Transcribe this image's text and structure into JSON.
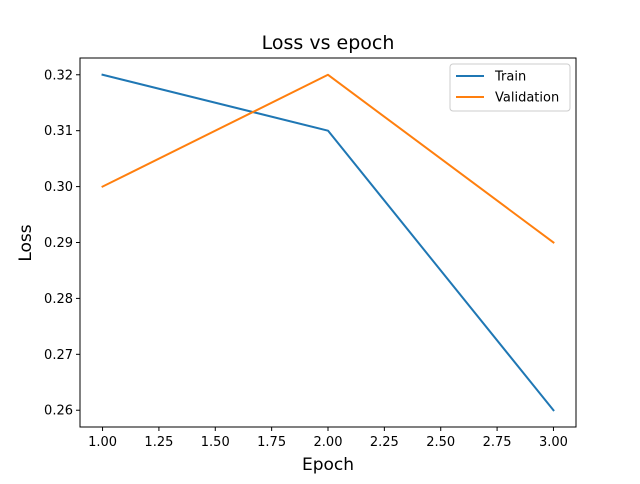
{
  "chart_data": {
    "type": "line",
    "title": "Loss vs epoch",
    "xlabel": "Epoch",
    "ylabel": "Loss",
    "xlim": [
      0.9,
      3.1
    ],
    "ylim": [
      0.257,
      0.323
    ],
    "xticks": [
      1.0,
      1.25,
      1.5,
      1.75,
      2.0,
      2.25,
      2.5,
      2.75,
      3.0
    ],
    "xtick_labels": [
      "1.00",
      "1.25",
      "1.50",
      "1.75",
      "2.00",
      "2.25",
      "2.50",
      "2.75",
      "3.00"
    ],
    "yticks": [
      0.26,
      0.27,
      0.28,
      0.29,
      0.3,
      0.31,
      0.32
    ],
    "ytick_labels": [
      "0.26",
      "0.27",
      "0.28",
      "0.29",
      "0.30",
      "0.31",
      "0.32"
    ],
    "grid": false,
    "legend_position": "top-right",
    "x": [
      1,
      2,
      3
    ],
    "series": [
      {
        "name": "Train",
        "values": [
          0.32,
          0.31,
          0.26
        ],
        "color": "#1f77b4"
      },
      {
        "name": "Validation",
        "values": [
          0.3,
          0.32,
          0.29
        ],
        "color": "#ff7f0e"
      }
    ]
  }
}
